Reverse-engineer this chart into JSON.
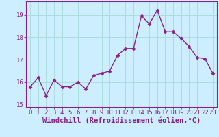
{
  "x": [
    0,
    1,
    2,
    3,
    4,
    5,
    6,
    7,
    8,
    9,
    10,
    11,
    12,
    13,
    14,
    15,
    16,
    17,
    18,
    19,
    20,
    21,
    22,
    23
  ],
  "y": [
    15.8,
    16.2,
    15.4,
    16.1,
    15.8,
    15.8,
    16.0,
    15.7,
    16.3,
    16.4,
    16.5,
    17.2,
    17.5,
    17.5,
    18.95,
    18.6,
    19.2,
    18.25,
    18.25,
    17.95,
    17.6,
    17.1,
    17.05,
    16.4
  ],
  "line_color": "#882288",
  "marker": "D",
  "marker_size": 2.5,
  "linewidth": 1.0,
  "bg_color": "#cceeff",
  "grid_color": "#aadddd",
  "xlabel": "Windchill (Refroidissement éolien,°C)",
  "xlabel_fontsize": 7.5,
  "tick_fontsize": 6.5,
  "ylim": [
    14.9,
    19.6
  ],
  "yticks": [
    15,
    16,
    17,
    18,
    19
  ],
  "xlim": [
    -0.5,
    23.5
  ],
  "xtick_labels": [
    "0",
    "1",
    "2",
    "3",
    "4",
    "5",
    "6",
    "7",
    "8",
    "9",
    "10",
    "11",
    "12",
    "13",
    "14",
    "15",
    "16",
    "17",
    "18",
    "19",
    "20",
    "21",
    "22",
    "23"
  ]
}
